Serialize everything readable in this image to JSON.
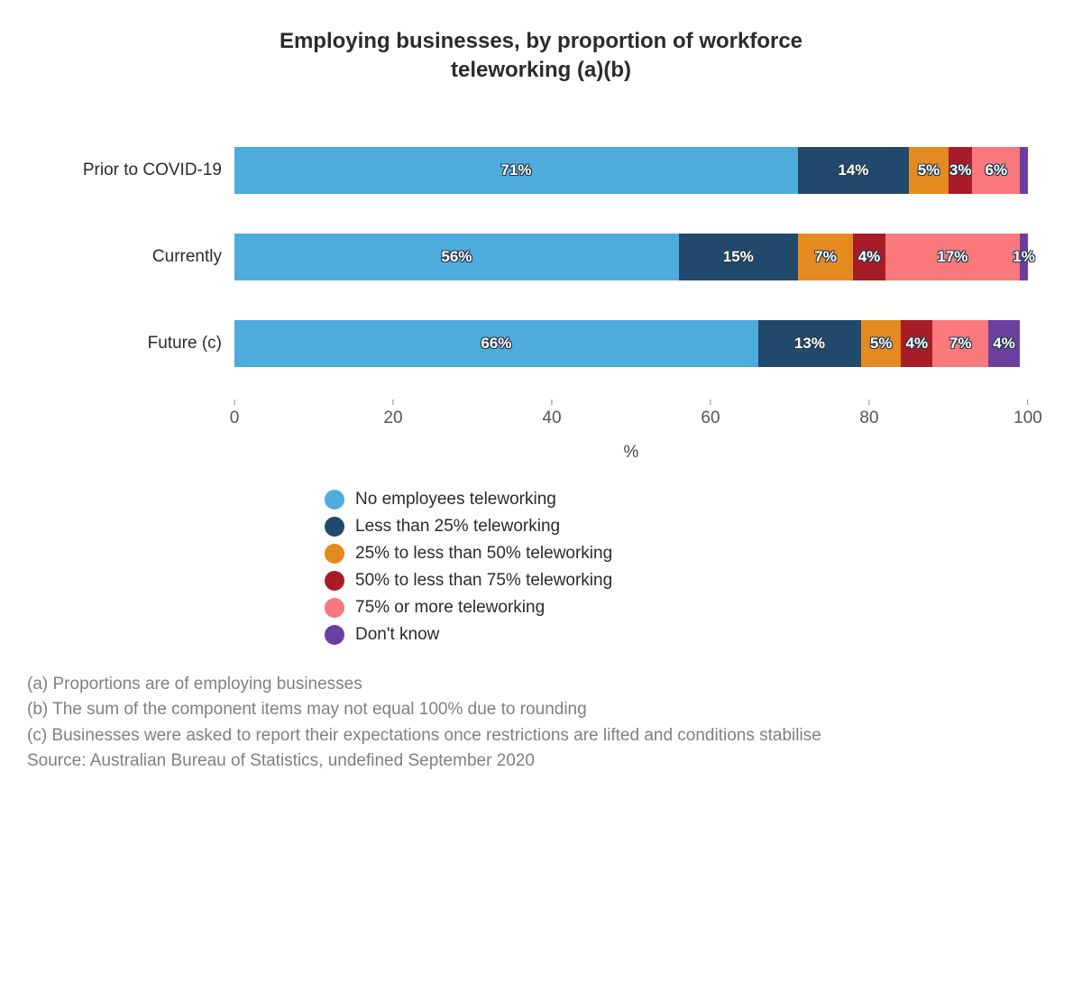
{
  "title_line1": "Employing businesses, by proportion of workforce",
  "title_line2": "teleworking (a)(b)",
  "title_fontsize": 24,
  "chart": {
    "type": "stacked-bar-horizontal",
    "xlabel": "%",
    "xmax": 100,
    "xticks": [
      0,
      20,
      40,
      60,
      80,
      100
    ],
    "label_fontsize": 19,
    "seg_label_fontsize": 17,
    "series": [
      {
        "key": "none",
        "label": "No employees teleworking",
        "color": "#4eacdd"
      },
      {
        "key": "lt25",
        "label": "Less than 25% teleworking",
        "color": "#21496c"
      },
      {
        "key": "b25_50",
        "label": "25% to less than 50% teleworking",
        "color": "#e58a1f"
      },
      {
        "key": "b50_75",
        "label": "50% to less than 75% teleworking",
        "color": "#a81c27"
      },
      {
        "key": "ge75",
        "label": "75% or more teleworking",
        "color": "#f8787b"
      },
      {
        "key": "dk",
        "label": "Don't know",
        "color": "#6b3fa0"
      }
    ],
    "categories": [
      {
        "label": "Prior to COVID-19",
        "values": {
          "none": 71,
          "lt25": 14,
          "b25_50": 5,
          "b50_75": 3,
          "ge75": 6,
          "dk": 1
        },
        "show_label": {
          "none": true,
          "lt25": true,
          "b25_50": true,
          "b50_75": true,
          "ge75": true,
          "dk": false
        }
      },
      {
        "label": "Currently",
        "values": {
          "none": 56,
          "lt25": 15,
          "b25_50": 7,
          "b50_75": 4,
          "ge75": 17,
          "dk": 1
        },
        "show_label": {
          "none": true,
          "lt25": true,
          "b25_50": true,
          "b50_75": true,
          "ge75": true,
          "dk": true
        }
      },
      {
        "label": "Future (c)",
        "values": {
          "none": 66,
          "lt25": 13,
          "b25_50": 5,
          "b50_75": 4,
          "ge75": 7,
          "dk": 4
        },
        "show_label": {
          "none": true,
          "lt25": true,
          "b25_50": true,
          "b50_75": true,
          "ge75": true,
          "dk": true
        }
      }
    ],
    "background_color": "#ffffff"
  },
  "notes": [
    "(a) Proportions are of employing businesses",
    "(b) The sum of the component items may not equal 100% due to rounding",
    "(c) Businesses were asked to report their expectations once restrictions are lifted and conditions stabilise",
    "Source: Australian Bureau of Statistics, undefined September 2020"
  ]
}
